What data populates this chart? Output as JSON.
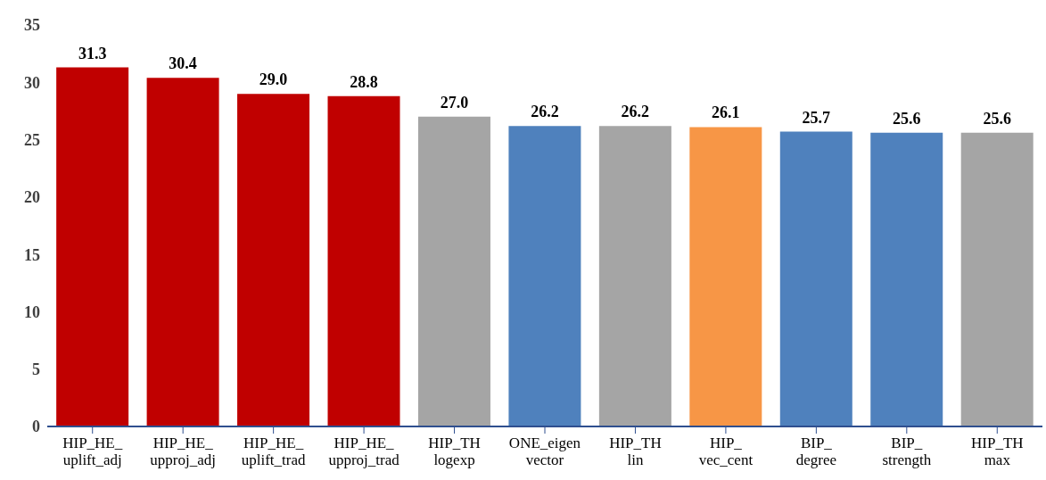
{
  "chart_data": {
    "type": "bar",
    "categories": [
      "HIP_HE_\nuplift_adj",
      "HIP_HE_\nupproj_adj",
      "HIP_HE_\nuplift_trad",
      "HIP_HE_\nupproj_trad",
      "HIP_TH\nlogexp",
      "ONE_eigen\nvector",
      "HIP_TH\nlin",
      "HIP_\nvec_cent",
      "BIP_\ndegree",
      "BIP_\nstrength",
      "HIP_TH\nmax"
    ],
    "values": [
      31.3,
      30.4,
      29.0,
      28.8,
      27.0,
      26.2,
      26.2,
      26.1,
      25.7,
      25.6,
      25.6
    ],
    "colors": [
      "#c00000",
      "#c00000",
      "#c00000",
      "#c00000",
      "#a5a5a5",
      "#4f81bd",
      "#a5a5a5",
      "#f79646",
      "#4f81bd",
      "#4f81bd",
      "#a5a5a5"
    ],
    "ylim": [
      0,
      35
    ],
    "yticks": [
      0,
      5,
      10,
      15,
      20,
      25,
      30,
      35
    ],
    "value_labels": [
      "31.3",
      "30.4",
      "29.0",
      "28.8",
      "27.0",
      "26.2",
      "26.2",
      "26.1",
      "25.7",
      "25.6",
      "25.6"
    ],
    "grid": false,
    "legend": false
  }
}
